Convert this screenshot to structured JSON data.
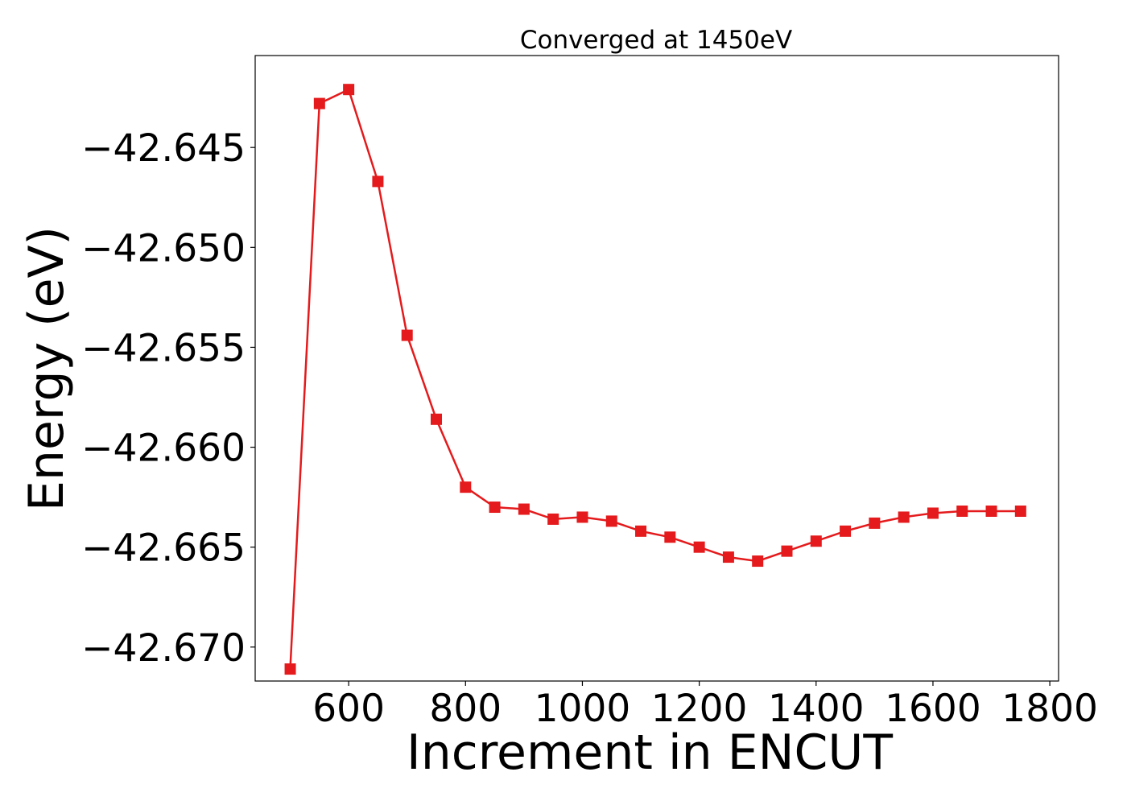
{
  "chart_data": {
    "type": "line",
    "title": "Converged at 1450eV",
    "xlabel": "Increment in ENCUT",
    "ylabel": "Energy (eV)",
    "xlim": [
      440,
      1815
    ],
    "ylim": [
      -42.6717,
      -42.6404
    ],
    "xticks": [
      600,
      800,
      1000,
      1200,
      1400,
      1600,
      1800
    ],
    "yticks": [
      -42.645,
      -42.65,
      -42.655,
      -42.66,
      -42.665,
      -42.67
    ],
    "ytick_labels": [
      "−42.645",
      "−42.650",
      "−42.655",
      "−42.660",
      "−42.665",
      "−42.670"
    ],
    "grid": false,
    "marker": "square",
    "color": "#e41a1c",
    "series": [
      {
        "x": [
          500,
          550,
          600,
          650,
          700,
          750,
          800,
          850,
          900,
          950,
          1000,
          1050,
          1100,
          1150,
          1200,
          1250,
          1300,
          1350,
          1400,
          1450,
          1500,
          1550,
          1600,
          1650,
          1700,
          1750
        ],
        "values": [
          -42.6711,
          -42.6428,
          -42.6421,
          -42.6467,
          -42.6544,
          -42.6586,
          -42.662,
          -42.663,
          -42.6631,
          -42.6636,
          -42.6635,
          -42.6637,
          -42.6642,
          -42.6645,
          -42.665,
          -42.6655,
          -42.6657,
          -42.6652,
          -42.6647,
          -42.6642,
          -42.6638,
          -42.6635,
          -42.6633,
          -42.6632,
          -42.6632,
          -42.6632
        ]
      }
    ]
  }
}
